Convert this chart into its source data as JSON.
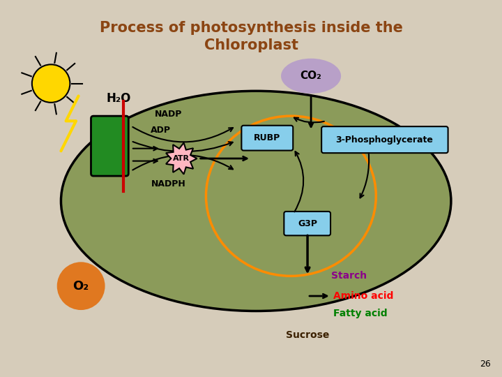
{
  "title": "Process of photosynthesis inside the\nChloroplast",
  "title_color": "#8B4513",
  "bg_color": "#D6CCBA",
  "chloroplast_outer_color": "#8B9B5A",
  "chloroplast_inner_stroke": "black",
  "co2_bubble_color": "#B8A0C8",
  "co2_text": "CO₂",
  "h2o_text": "H₂O",
  "o2_text": "O₂",
  "o2_bubble_color": "#E07820",
  "rubp_box_color": "#87CEEB",
  "g3p_box_color": "#87CEEB",
  "phospho_box_color": "#87CEEB",
  "atr_color": "#FFB6C1",
  "cycle_color": "#FF8C00",
  "sun_color": "#FFD700",
  "green_rect_color": "#228B22",
  "red_line_color": "#CC0000",
  "nadp_text": "NADP",
  "adp_text": "ADP",
  "nadph_text": "NADPH",
  "rubp_text": "RUBP",
  "g3p_text": "G3P",
  "phospho_text": "3-Phosphoglycerate",
  "atr_text": "ATR",
  "starch_text": "Starch",
  "amino_text": "Amino acid",
  "fatty_text": "Fatty acid",
  "sucrose_text": "Sucrose",
  "starch_color": "#8B008B",
  "amino_color": "#FF0000",
  "fatty_color": "#008000",
  "sucrose_color": "#3B2000",
  "page_num": "26"
}
